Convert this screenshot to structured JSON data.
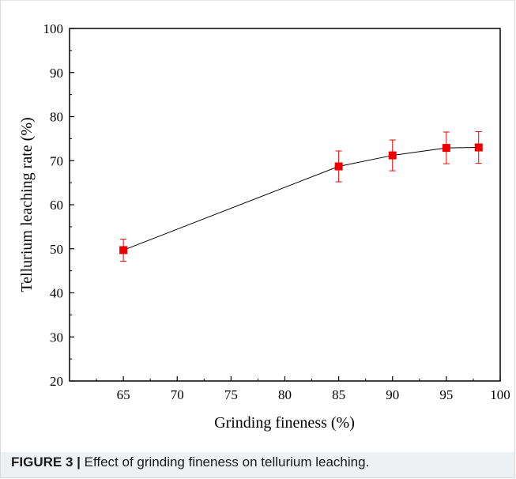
{
  "chart_data": {
    "type": "line",
    "title": "",
    "xlabel": "Grinding fineness (%)",
    "ylabel": "Tellurium leaching rate (%)",
    "xlim": [
      60,
      100
    ],
    "ylim": [
      20,
      100
    ],
    "xticks": [
      65,
      70,
      75,
      80,
      85,
      90,
      95,
      100
    ],
    "yticks": [
      20,
      30,
      40,
      50,
      60,
      70,
      80,
      90,
      100
    ],
    "grid": false,
    "series": [
      {
        "x": [
          65,
          85,
          90,
          95,
          98
        ],
        "y": [
          49.7,
          68.7,
          71.2,
          72.9,
          73.0
        ],
        "error": [
          2.5,
          3.5,
          3.5,
          3.6,
          3.6
        ],
        "marker": "square",
        "marker_color": "#ee0000",
        "line_color": "#000000"
      }
    ]
  },
  "caption": {
    "label": "FIGURE 3 |",
    "text": " Effect of grinding fineness on tellurium leaching."
  }
}
